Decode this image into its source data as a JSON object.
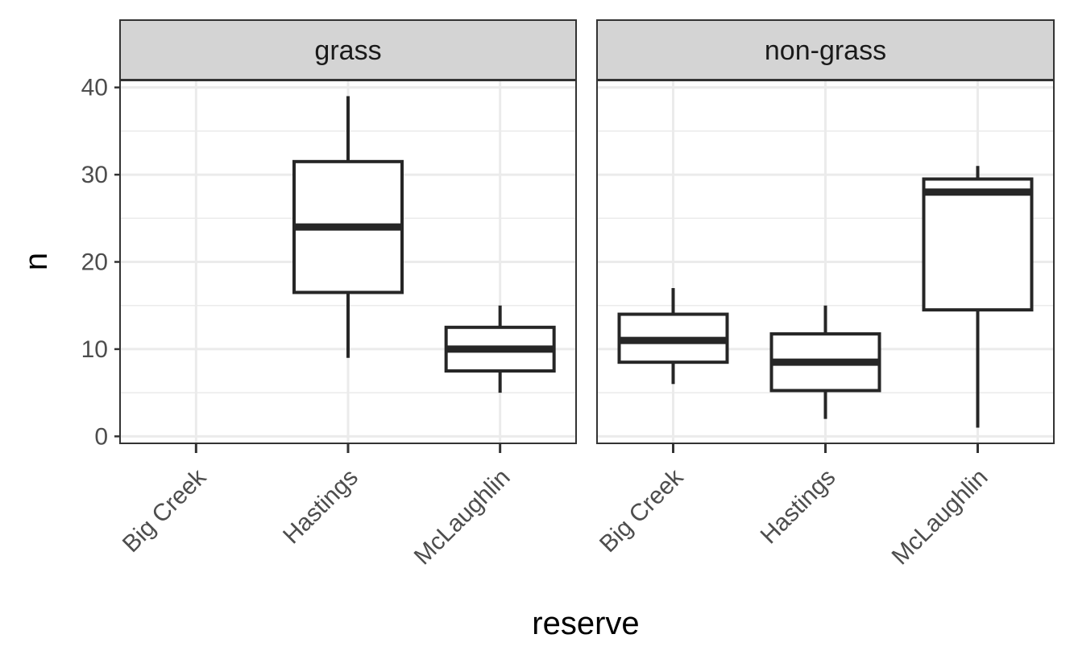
{
  "chart_data": {
    "type": "box",
    "xlabel": "reserve",
    "ylabel": "n",
    "ylim": [
      -0.8,
      40.8
    ],
    "yticks": [
      0,
      10,
      20,
      30,
      40
    ],
    "grid": true,
    "theme": "bw",
    "colors": {
      "box_stroke": "#262626",
      "strip_fill": "#d4d4d4",
      "grid": "#ebebeb",
      "panel_border": "#333333"
    },
    "facets": [
      {
        "label": "grass",
        "categories": [
          "Big Creek",
          "Hastings",
          "McLaughlin"
        ],
        "boxes": [
          null,
          {
            "min": 9,
            "q1": 16.5,
            "median": 24,
            "q3": 31.5,
            "max": 39
          },
          {
            "min": 5,
            "q1": 7.5,
            "median": 10,
            "q3": 12.5,
            "max": 15
          }
        ]
      },
      {
        "label": "non-grass",
        "categories": [
          "Big Creek",
          "Hastings",
          "McLaughlin"
        ],
        "boxes": [
          {
            "min": 6,
            "q1": 8.5,
            "median": 11,
            "q3": 14,
            "max": 17
          },
          {
            "min": 2,
            "q1": 5.25,
            "median": 8.5,
            "q3": 11.75,
            "max": 15
          },
          {
            "min": 1,
            "q1": 14.5,
            "median": 28,
            "q3": 29.5,
            "max": 31
          }
        ]
      }
    ]
  }
}
